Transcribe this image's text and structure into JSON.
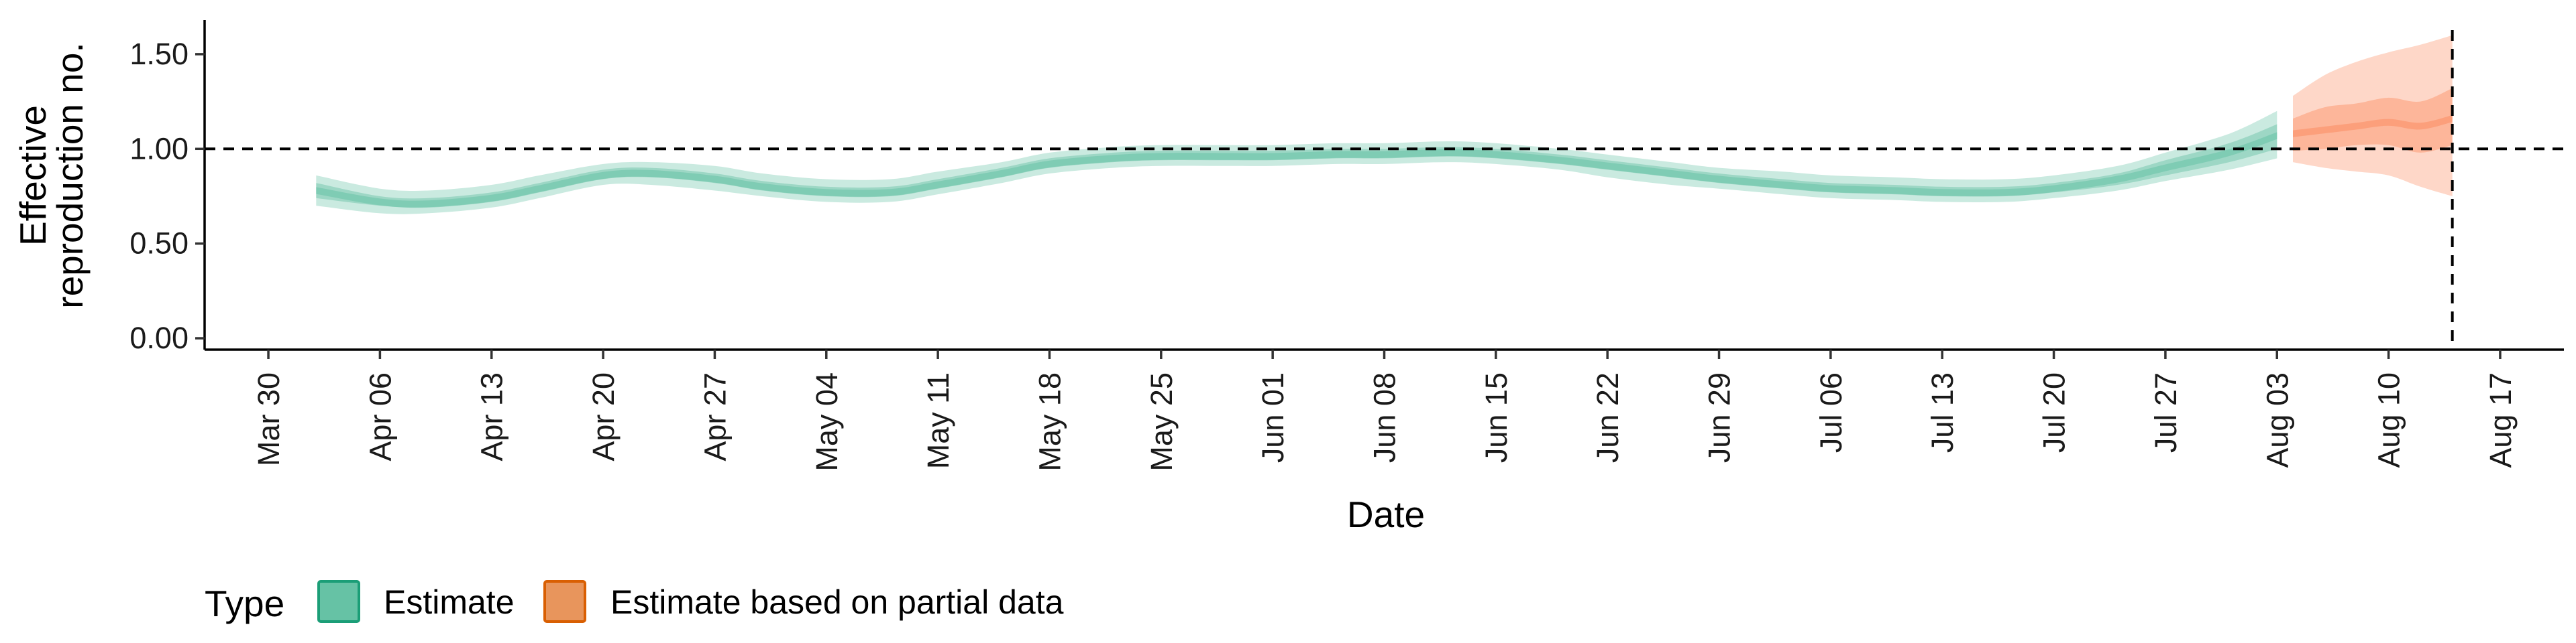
{
  "chart_data": {
    "type": "area",
    "xlabel": "Date",
    "ylabel_lines": [
      "Effective",
      "reproduction no."
    ],
    "y_ticks": [
      0.0,
      0.5,
      1.0,
      1.5
    ],
    "y_tick_labels": [
      "0.00",
      "0.50",
      "1.00",
      "1.50"
    ],
    "ylim": [
      -0.06,
      1.68
    ],
    "xlim": [
      "2020-03-26",
      "2020-08-21"
    ],
    "x_ticks": [
      "2020-03-30",
      "2020-04-06",
      "2020-04-13",
      "2020-04-20",
      "2020-04-27",
      "2020-05-04",
      "2020-05-11",
      "2020-05-18",
      "2020-05-25",
      "2020-06-01",
      "2020-06-08",
      "2020-06-15",
      "2020-06-22",
      "2020-06-29",
      "2020-07-06",
      "2020-07-13",
      "2020-07-20",
      "2020-07-27",
      "2020-08-03",
      "2020-08-10",
      "2020-08-17"
    ],
    "x_tick_labels": [
      "Mar 30",
      "Apr 06",
      "Apr 13",
      "Apr 20",
      "Apr 27",
      "May 04",
      "May 11",
      "May 18",
      "May 25",
      "Jun 01",
      "Jun 08",
      "Jun 15",
      "Jun 22",
      "Jun 29",
      "Jul 06",
      "Jul 13",
      "Jul 20",
      "Jul 27",
      "Aug 03",
      "Aug 10",
      "Aug 17"
    ],
    "reference_hline": 1.0,
    "reference_vline": "2020-08-14",
    "grid": false,
    "legend_position": "bottom-left",
    "legend_title": "Type",
    "series": [
      {
        "name": "Estimate",
        "color": "#66c2a5",
        "x": [
          "2020-04-02",
          "2020-04-06",
          "2020-04-09",
          "2020-04-13",
          "2020-04-16",
          "2020-04-20",
          "2020-04-23",
          "2020-04-27",
          "2020-04-30",
          "2020-05-04",
          "2020-05-08",
          "2020-05-11",
          "2020-05-15",
          "2020-05-18",
          "2020-05-22",
          "2020-05-25",
          "2020-05-29",
          "2020-06-01",
          "2020-06-05",
          "2020-06-08",
          "2020-06-12",
          "2020-06-15",
          "2020-06-19",
          "2020-06-22",
          "2020-06-26",
          "2020-06-29",
          "2020-07-03",
          "2020-07-06",
          "2020-07-10",
          "2020-07-13",
          "2020-07-17",
          "2020-07-20",
          "2020-07-24",
          "2020-07-27",
          "2020-07-31",
          "2020-08-03"
        ],
        "median": [
          0.78,
          0.72,
          0.71,
          0.74,
          0.79,
          0.86,
          0.87,
          0.84,
          0.8,
          0.77,
          0.77,
          0.81,
          0.87,
          0.92,
          0.95,
          0.96,
          0.96,
          0.96,
          0.97,
          0.97,
          0.98,
          0.97,
          0.94,
          0.91,
          0.87,
          0.84,
          0.81,
          0.79,
          0.78,
          0.77,
          0.77,
          0.79,
          0.84,
          0.9,
          0.98,
          1.07
        ],
        "inner_lower": [
          0.74,
          0.7,
          0.69,
          0.72,
          0.77,
          0.84,
          0.85,
          0.82,
          0.78,
          0.75,
          0.75,
          0.79,
          0.85,
          0.9,
          0.93,
          0.94,
          0.94,
          0.94,
          0.95,
          0.95,
          0.96,
          0.95,
          0.92,
          0.89,
          0.85,
          0.82,
          0.79,
          0.77,
          0.76,
          0.75,
          0.75,
          0.77,
          0.81,
          0.86,
          0.93,
          1.0
        ],
        "inner_upper": [
          0.82,
          0.75,
          0.74,
          0.77,
          0.82,
          0.89,
          0.9,
          0.87,
          0.83,
          0.8,
          0.8,
          0.84,
          0.9,
          0.95,
          0.98,
          0.99,
          0.99,
          0.99,
          1.0,
          1.0,
          1.01,
          1.0,
          0.97,
          0.94,
          0.9,
          0.87,
          0.84,
          0.82,
          0.81,
          0.8,
          0.8,
          0.82,
          0.87,
          0.94,
          1.03,
          1.13
        ],
        "outer_lower": [
          0.7,
          0.66,
          0.66,
          0.69,
          0.74,
          0.81,
          0.81,
          0.78,
          0.75,
          0.72,
          0.72,
          0.76,
          0.82,
          0.87,
          0.9,
          0.91,
          0.91,
          0.91,
          0.92,
          0.92,
          0.93,
          0.92,
          0.89,
          0.85,
          0.81,
          0.79,
          0.76,
          0.74,
          0.73,
          0.72,
          0.72,
          0.74,
          0.78,
          0.83,
          0.89,
          0.95
        ],
        "outer_upper": [
          0.86,
          0.79,
          0.78,
          0.81,
          0.86,
          0.92,
          0.93,
          0.91,
          0.87,
          0.84,
          0.84,
          0.88,
          0.93,
          0.98,
          1.01,
          1.02,
          1.02,
          1.02,
          1.03,
          1.03,
          1.04,
          1.03,
          1.0,
          0.97,
          0.93,
          0.9,
          0.88,
          0.86,
          0.85,
          0.84,
          0.84,
          0.86,
          0.91,
          0.98,
          1.08,
          1.2
        ]
      },
      {
        "name": "Estimate based on partial data",
        "color": "#fc8d62",
        "x": [
          "2020-08-04",
          "2020-08-06",
          "2020-08-08",
          "2020-08-10",
          "2020-08-12",
          "2020-08-14"
        ],
        "median": [
          1.08,
          1.1,
          1.12,
          1.14,
          1.12,
          1.16
        ],
        "inner_lower": [
          0.99,
          1.0,
          1.02,
          1.02,
          0.98,
          1.02
        ],
        "inner_upper": [
          1.16,
          1.22,
          1.24,
          1.27,
          1.25,
          1.32
        ],
        "outer_lower": [
          0.93,
          0.9,
          0.88,
          0.86,
          0.8,
          0.75
        ],
        "outer_upper": [
          1.28,
          1.39,
          1.46,
          1.51,
          1.55,
          1.6
        ]
      }
    ]
  },
  "legend": {
    "title": "Type",
    "items": [
      {
        "label": "Estimate",
        "fill": "#66c2a5",
        "stroke": "#1b9e77"
      },
      {
        "label": "Estimate based on partial data",
        "fill": "#e8955c",
        "stroke": "#d95f02"
      }
    ]
  }
}
